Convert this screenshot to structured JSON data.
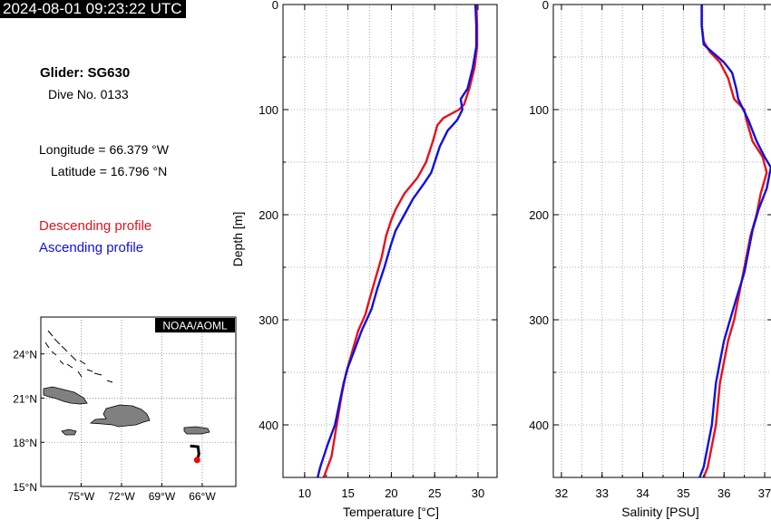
{
  "header": {
    "timestamp": "2024-08-01 09:23:22 UTC"
  },
  "info": {
    "glider": "Glider: SG630",
    "dive": "Dive No. 0133",
    "longitude": "Longitude = 66.379 °W",
    "latitude": "Latitude = 16.796 °N"
  },
  "legend": {
    "descending": "Descending profile",
    "ascending": "Ascending profile",
    "descending_color": "#e8101a",
    "ascending_color": "#1010e0"
  },
  "map": {
    "credit": "NOAA/AOML",
    "lat_ticks": [
      "24°N",
      "21°N",
      "18°N",
      "15°N"
    ],
    "lon_ticks": [
      "75°W",
      "72°W",
      "69°W",
      "66°W"
    ],
    "lat_range": [
      15,
      26.5
    ],
    "lon_range": [
      -78,
      -63.5
    ],
    "glider_position": {
      "lon": -66.379,
      "lat": 16.796
    },
    "track_color": "#000000",
    "position_color": "#ff0000",
    "land_color": "#808080"
  },
  "chart_data": [
    {
      "type": "line",
      "xlabel": "Temperature [°C]",
      "ylabel": "Depth [m]",
      "xlim": [
        7.5,
        32.2
      ],
      "ylim": [
        450,
        0
      ],
      "x_ticks": [
        "10",
        "15",
        "20",
        "25",
        "30"
      ],
      "y_ticks": [
        "0",
        "100",
        "200",
        "300",
        "400"
      ],
      "grid": true,
      "series": [
        {
          "name": "Descending profile",
          "color": "#e8101a",
          "points": [
            [
              29.8,
              0
            ],
            [
              29.9,
              20
            ],
            [
              29.9,
              40
            ],
            [
              29.6,
              60
            ],
            [
              29.0,
              80
            ],
            [
              28.4,
              95
            ],
            [
              27.8,
              100
            ],
            [
              26.0,
              108
            ],
            [
              25.3,
              115
            ],
            [
              24.8,
              130
            ],
            [
              24.0,
              150
            ],
            [
              23.0,
              165
            ],
            [
              21.5,
              180
            ],
            [
              20.5,
              195
            ],
            [
              20.0,
              205
            ],
            [
              19.4,
              220
            ],
            [
              18.9,
              240
            ],
            [
              18.2,
              260
            ],
            [
              17.5,
              280
            ],
            [
              17.0,
              295
            ],
            [
              16.2,
              310
            ],
            [
              15.5,
              330
            ],
            [
              14.8,
              350
            ],
            [
              14.3,
              370
            ],
            [
              13.9,
              390
            ],
            [
              13.5,
              410
            ],
            [
              13.1,
              430
            ],
            [
              12.2,
              450
            ]
          ]
        },
        {
          "name": "Ascending profile",
          "color": "#1010e0",
          "points": [
            [
              29.7,
              0
            ],
            [
              29.8,
              20
            ],
            [
              29.8,
              40
            ],
            [
              29.4,
              60
            ],
            [
              28.8,
              80
            ],
            [
              28.0,
              90
            ],
            [
              28.2,
              100
            ],
            [
              27.6,
              110
            ],
            [
              26.5,
              120
            ],
            [
              25.6,
              135
            ],
            [
              25.0,
              150
            ],
            [
              24.6,
              160
            ],
            [
              23.8,
              170
            ],
            [
              22.5,
              185
            ],
            [
              21.5,
              200
            ],
            [
              20.5,
              215
            ],
            [
              19.9,
              230
            ],
            [
              19.2,
              250
            ],
            [
              18.4,
              270
            ],
            [
              17.7,
              290
            ],
            [
              16.6,
              310
            ],
            [
              15.7,
              330
            ],
            [
              15.0,
              345
            ],
            [
              14.5,
              360
            ],
            [
              14.0,
              380
            ],
            [
              13.5,
              400
            ],
            [
              12.6,
              420
            ],
            [
              11.8,
              440
            ],
            [
              11.5,
              450
            ]
          ]
        }
      ]
    },
    {
      "type": "line",
      "xlabel": "Salinity [PSU]",
      "ylabel": "",
      "xlim": [
        31.8,
        37.2
      ],
      "ylim": [
        450,
        0
      ],
      "x_ticks": [
        "32",
        "33",
        "34",
        "35",
        "36",
        "37"
      ],
      "y_ticks": [
        "0",
        "100",
        "200",
        "300",
        "400"
      ],
      "grid": true,
      "series": [
        {
          "name": "Descending profile",
          "color": "#e8101a",
          "points": [
            [
              35.45,
              0
            ],
            [
              35.45,
              20
            ],
            [
              35.5,
              35
            ],
            [
              35.65,
              45
            ],
            [
              35.9,
              55
            ],
            [
              36.1,
              70
            ],
            [
              36.25,
              90
            ],
            [
              36.5,
              100
            ],
            [
              36.55,
              110
            ],
            [
              36.7,
              130
            ],
            [
              36.95,
              145
            ],
            [
              37.05,
              160
            ],
            [
              36.9,
              180
            ],
            [
              36.8,
              200
            ],
            [
              36.65,
              220
            ],
            [
              36.55,
              240
            ],
            [
              36.45,
              260
            ],
            [
              36.35,
              280
            ],
            [
              36.25,
              300
            ],
            [
              36.1,
              320
            ],
            [
              36.0,
              340
            ],
            [
              35.9,
              360
            ],
            [
              35.85,
              380
            ],
            [
              35.8,
              400
            ],
            [
              35.7,
              420
            ],
            [
              35.6,
              440
            ],
            [
              35.5,
              450
            ]
          ]
        },
        {
          "name": "Ascending profile",
          "color": "#1010e0",
          "points": [
            [
              35.45,
              0
            ],
            [
              35.45,
              20
            ],
            [
              35.5,
              38
            ],
            [
              35.7,
              45
            ],
            [
              36.0,
              55
            ],
            [
              36.2,
              65
            ],
            [
              36.3,
              80
            ],
            [
              36.35,
              90
            ],
            [
              36.45,
              98
            ],
            [
              36.6,
              110
            ],
            [
              36.8,
              130
            ],
            [
              37.0,
              145
            ],
            [
              37.15,
              155
            ],
            [
              37.05,
              175
            ],
            [
              36.85,
              195
            ],
            [
              36.7,
              215
            ],
            [
              36.6,
              235
            ],
            [
              36.5,
              255
            ],
            [
              36.3,
              280
            ],
            [
              36.15,
              300
            ],
            [
              36.0,
              320
            ],
            [
              35.9,
              340
            ],
            [
              35.8,
              360
            ],
            [
              35.75,
              380
            ],
            [
              35.7,
              400
            ],
            [
              35.6,
              420
            ],
            [
              35.5,
              440
            ],
            [
              35.4,
              450
            ]
          ]
        }
      ]
    }
  ]
}
